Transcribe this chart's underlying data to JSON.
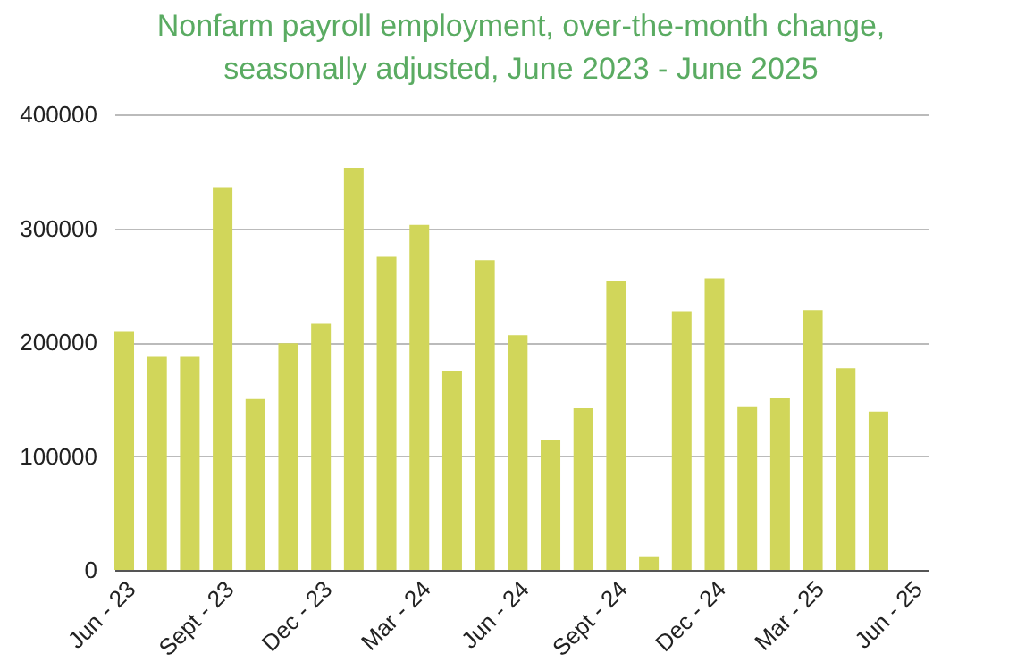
{
  "chart_data": {
    "type": "bar",
    "title": "Nonfarm payroll employment, over-the-month change, seasonally adjusted, June 2023 - June 2025",
    "categories": [
      "Jun - 23",
      null,
      null,
      "Sept - 23",
      null,
      null,
      "Dec - 23",
      null,
      null,
      "Mar - 24",
      null,
      null,
      "Jun - 24",
      null,
      null,
      "Sept - 24",
      null,
      null,
      "Dec - 24",
      null,
      null,
      "Mar - 25",
      null,
      null,
      "Jun - 25"
    ],
    "values": [
      209000,
      187000,
      187000,
      336000,
      150000,
      199000,
      216000,
      353000,
      275000,
      303000,
      175000,
      272000,
      206000,
      114000,
      142000,
      254000,
      12000,
      227000,
      256000,
      143000,
      151000,
      228000,
      177000,
      139000,
      null
    ],
    "color": "#d1d65a",
    "ylim": [
      0,
      400000
    ],
    "yticks": [
      0,
      100000,
      200000,
      300000,
      400000
    ],
    "grid": "y"
  }
}
